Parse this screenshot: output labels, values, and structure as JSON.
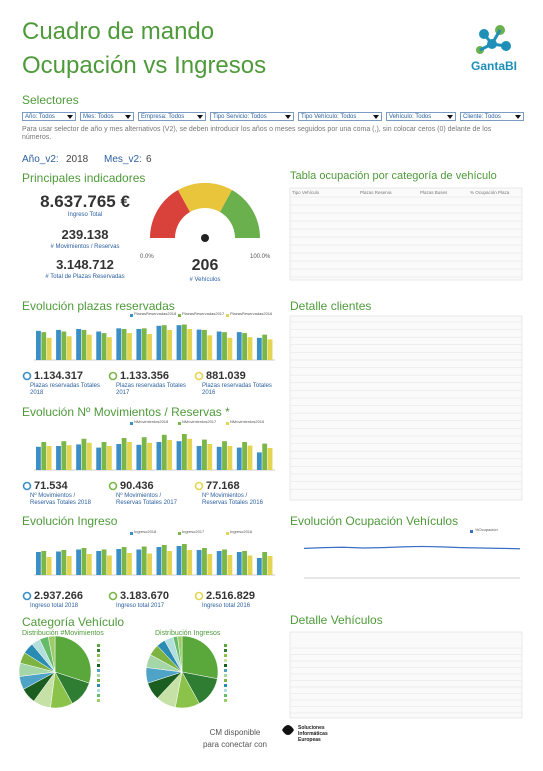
{
  "header": {
    "title": "Cuadro de mando",
    "subtitle": "Ocupación vs Ingresos",
    "logo": "GantaBI"
  },
  "selectors": {
    "title": "Selectores",
    "items": [
      "Año: Todos",
      "Mes: Todos",
      "Empresa: Todos",
      "Tipo Servicio: Todos",
      "Tipo Vehículo: Todos",
      "Vehículo: Todos",
      "Cliente: Todos"
    ],
    "note": "Para usar selector de año y mes alternativos (V2), se deben introducir los años o meses seguidos por una coma (,), sin colocar ceros (0) delante de los números.",
    "year_label": "Año_v2:",
    "year": "2018",
    "month_label": "Mes_v2:",
    "month": "6"
  },
  "indicators": {
    "title": "Principales indicadores",
    "kpis": [
      {
        "value": "8.637.765 €",
        "label": "Ingreso Total"
      },
      {
        "value": "239.138",
        "label": "# Movimientos / Reservas"
      },
      {
        "value": "3.148.712",
        "label": "# Total de Plazas Reservadas"
      }
    ],
    "gauge": {
      "min_label": "0.0%",
      "max_label": "100.0%",
      "value": "206",
      "label": "# Vehículos"
    }
  },
  "occupancy_table": {
    "title": "Tabla ocupación por categoría de vehículo",
    "columns": [
      "Tipo Vehículo",
      "Plazas Reserva",
      "Plazas Buses",
      "% Ocupación Plaza"
    ]
  },
  "clients": {
    "title": "Detalle clientes"
  },
  "vehicles": {
    "title": "Detalle Vehículos"
  },
  "category": {
    "title": "Categoría Vehículo"
  },
  "footer": {
    "line1": "CM disponible",
    "line2": "para conectar con",
    "logo": "Soluciones Informáticas Europeas"
  },
  "chart_data": [
    {
      "type": "bar",
      "title": "Evolución plazas reservadas",
      "ylim": [
        0,
        120000
      ],
      "series": [
        {
          "name": "PlazasReservadas2018",
          "color": "#3b8fc6",
          "values": [
            92000,
            95000,
            98000,
            90000,
            100000,
            98000,
            108000,
            110000,
            96000,
            90000,
            88000,
            70000
          ]
        },
        {
          "name": "PlazasReservadas2017",
          "color": "#7ab648",
          "values": [
            88000,
            90000,
            95000,
            85000,
            98000,
            100000,
            110000,
            112000,
            95000,
            88000,
            85000,
            80000
          ]
        },
        {
          "name": "PlazasReservadas2016",
          "color": "#e3d552",
          "values": [
            70000,
            75000,
            80000,
            72000,
            85000,
            82000,
            95000,
            98000,
            78000,
            70000,
            72000,
            65000
          ]
        }
      ],
      "totals": [
        {
          "value": "1.134.317",
          "label": "Plazas reservadas Totales 2018"
        },
        {
          "value": "1.133.356",
          "label": "Plazas reservadas Totales 2017"
        },
        {
          "value": "881.039",
          "label": "Plazas reservadas Totales 2016"
        }
      ]
    },
    {
      "type": "bar",
      "title": "Evolución Nº Movimientos / Reservas *",
      "ylim": [
        0,
        10000
      ],
      "series": [
        {
          "name": "NMovimientos2018",
          "color": "#3b8fc6",
          "values": [
            5800,
            6000,
            6400,
            5600,
            6500,
            6300,
            7000,
            7200,
            6000,
            5800,
            5600,
            4400
          ]
        },
        {
          "name": "NMovimientos2017",
          "color": "#7ab648",
          "values": [
            7000,
            7200,
            7800,
            7000,
            8000,
            8200,
            8800,
            9000,
            7600,
            7200,
            7000,
            6600
          ]
        },
        {
          "name": "NMovimientos2016",
          "color": "#e3d552",
          "values": [
            6000,
            6200,
            6800,
            6000,
            7000,
            6800,
            7500,
            7800,
            6500,
            6000,
            6100,
            5500
          ]
        }
      ],
      "totals": [
        {
          "value": "71.534",
          "label": "Nº Movimientos / Reservas Totales 2018"
        },
        {
          "value": "90.436",
          "label": "Nº Movimientos / Reservas Totales 2017"
        },
        {
          "value": "77.168",
          "label": "Nº Movimientos / Reservas Totales 2016"
        }
      ]
    },
    {
      "type": "bar",
      "title": "Evolución Ingreso",
      "ylim": [
        0,
        350000
      ],
      "series": [
        {
          "name": "Ingreso2018",
          "color": "#3b8fc6",
          "values": [
            230000,
            235000,
            255000,
            240000,
            260000,
            255000,
            280000,
            290000,
            250000,
            240000,
            230000,
            170000
          ]
        },
        {
          "name": "Ingreso2017",
          "color": "#7ab648",
          "values": [
            240000,
            250000,
            270000,
            255000,
            280000,
            285000,
            300000,
            310000,
            270000,
            255000,
            240000,
            230000
          ]
        },
        {
          "name": "Ingreso2016",
          "color": "#e3d552",
          "values": [
            180000,
            190000,
            210000,
            195000,
            220000,
            215000,
            240000,
            250000,
            210000,
            200000,
            195000,
            190000
          ]
        }
      ],
      "totals": [
        {
          "value": "2.937.266",
          "label": "Ingreso total 2018"
        },
        {
          "value": "3.183.670",
          "label": "Ingreso total 2017"
        },
        {
          "value": "2.516.829",
          "label": "Ingreso total 2016"
        }
      ]
    },
    {
      "type": "line",
      "title": "Evolución Ocupación Vehículos",
      "ylim": [
        0,
        100
      ],
      "series": [
        {
          "name": "%Ocupación",
          "color": "#3b6fc6",
          "values": [
            78,
            80,
            81,
            79,
            80,
            82,
            83,
            82,
            80,
            79,
            78,
            77
          ]
        }
      ]
    },
    {
      "type": "pie",
      "title": "Distribución #Movimientos",
      "values": [
        30,
        12,
        10,
        8,
        7,
        6,
        6,
        5,
        5,
        4,
        4,
        3
      ],
      "colors": [
        "#5aa83c",
        "#2e7d32",
        "#8bc34a",
        "#c5e1a5",
        "#1b5e20",
        "#4fa3c7",
        "#a5d6a7",
        "#7cb342",
        "#2a8cb3",
        "#b2dfdb",
        "#66bb6a",
        "#9ccc65"
      ]
    },
    {
      "type": "pie",
      "title": "Distribución Ingresos",
      "values": [
        28,
        14,
        11,
        9,
        8,
        7,
        6,
        5,
        4,
        4,
        2,
        2
      ],
      "colors": [
        "#5aa83c",
        "#2e7d32",
        "#8bc34a",
        "#c5e1a5",
        "#1b5e20",
        "#4fa3c7",
        "#a5d6a7",
        "#7cb342",
        "#2a8cb3",
        "#b2dfdb",
        "#66bb6a",
        "#9ccc65"
      ]
    }
  ]
}
